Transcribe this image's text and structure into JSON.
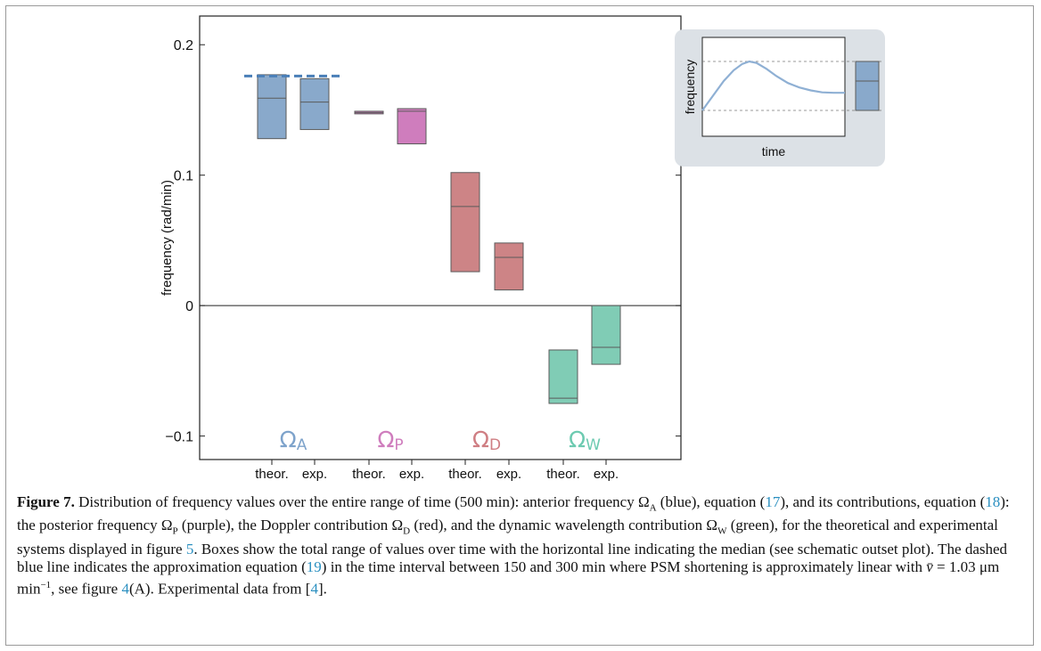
{
  "chart_data": [
    {
      "type": "box",
      "ylabel": "frequency (rad/min)",
      "ylim": [
        -0.118,
        0.222
      ],
      "yticks": [
        {
          "value": 0.2,
          "label": "0.2"
        },
        {
          "value": 0.1,
          "label": "0.1"
        },
        {
          "value": 0,
          "label": "0"
        },
        {
          "value": -0.1,
          "label": "−0.1"
        }
      ],
      "groups": [
        {
          "symbol": "Ω",
          "subscript": "A",
          "color": "#89a9cb",
          "label_color": "#7ea3cb"
        },
        {
          "symbol": "Ω",
          "subscript": "P",
          "color": "#cf7dbd",
          "label_color": "#cf7dbd"
        },
        {
          "symbol": "Ω",
          "subscript": "D",
          "color": "#cd8486",
          "label_color": "#cf7e83"
        },
        {
          "symbol": "Ω",
          "subscript": "W",
          "color": "#80ccb5",
          "label_color": "#6ccab0"
        }
      ],
      "x_tick_labels": [
        "theor.",
        "exp.",
        "theor.",
        "exp.",
        "theor.",
        "exp.",
        "theor.",
        "exp."
      ],
      "boxes": [
        {
          "group": 0,
          "system": "theor.",
          "min": 0.128,
          "median": 0.159,
          "max": 0.177
        },
        {
          "group": 0,
          "system": "exp.",
          "min": 0.135,
          "median": 0.156,
          "max": 0.174
        },
        {
          "group": 1,
          "system": "theor.",
          "min": 0.147,
          "median": 0.148,
          "max": 0.149
        },
        {
          "group": 1,
          "system": "exp.",
          "min": 0.124,
          "median": 0.149,
          "max": 0.151
        },
        {
          "group": 2,
          "system": "theor.",
          "min": 0.026,
          "median": 0.076,
          "max": 0.102
        },
        {
          "group": 2,
          "system": "exp.",
          "min": 0.012,
          "median": 0.037,
          "max": 0.048
        },
        {
          "group": 3,
          "system": "theor.",
          "min": -0.075,
          "median": -0.071,
          "max": -0.034
        },
        {
          "group": 3,
          "system": "exp.",
          "min": -0.045,
          "median": -0.032,
          "max": 0.0
        }
      ],
      "approximation_line": {
        "value": 0.176,
        "color": "#4a7fb8",
        "style": "dashed",
        "spans_groups": [
          0
        ]
      }
    },
    {
      "type": "line",
      "xlabel": "time",
      "ylabel": "frequency",
      "series_color": "#8fb0d4",
      "x": [
        0,
        0.08,
        0.15,
        0.22,
        0.28,
        0.33,
        0.38,
        0.45,
        0.52,
        0.6,
        0.68,
        0.76,
        0.84,
        0.92,
        1.0
      ],
      "y": [
        0.0,
        0.32,
        0.6,
        0.82,
        0.95,
        1.0,
        0.97,
        0.85,
        0.7,
        0.56,
        0.47,
        0.41,
        0.37,
        0.36,
        0.36
      ],
      "reference_lines": [
        1.0,
        0.0
      ],
      "box": {
        "min": 0.0,
        "median": 0.6,
        "max": 1.0,
        "color": "#89a9cb"
      }
    }
  ],
  "caption": {
    "label": "Figure 7.",
    "parts": [
      {
        "t": " Distribution of frequency values over the entire range of time (500 min): anterior frequency Ω"
      },
      {
        "sub": "A"
      },
      {
        "t": " (blue), equation ("
      },
      {
        "ref": "17"
      },
      {
        "t": "), and its contributions, equation ("
      },
      {
        "ref": "18"
      },
      {
        "t": "): the posterior frequency Ω"
      },
      {
        "sub": "P"
      },
      {
        "t": " (purple), the Doppler contribution Ω"
      },
      {
        "sub": "D"
      },
      {
        "t": " (red), and the dynamic wavelength contribution Ω"
      },
      {
        "sub": "W"
      },
      {
        "t": " (green), for the theoretical and experimental systems displayed in figure "
      },
      {
        "ref": "5"
      },
      {
        "t": ". Boxes show the total range of values over time with the horizontal line indicating the median (see schematic outset plot). The dashed blue line indicates the approximation equation ("
      },
      {
        "ref": "19"
      },
      {
        "t": ") in the time interval between 150 and 300 min where PSM shortening is approximately linear with "
      },
      {
        "it": "v̄"
      },
      {
        "t": " = 1.03 μm min"
      },
      {
        "sup": "−1"
      },
      {
        "t": ", see figure "
      },
      {
        "ref": "4"
      },
      {
        "t": "(A). Experimental data from ["
      },
      {
        "ref": "4"
      },
      {
        "t": "]."
      }
    ]
  }
}
